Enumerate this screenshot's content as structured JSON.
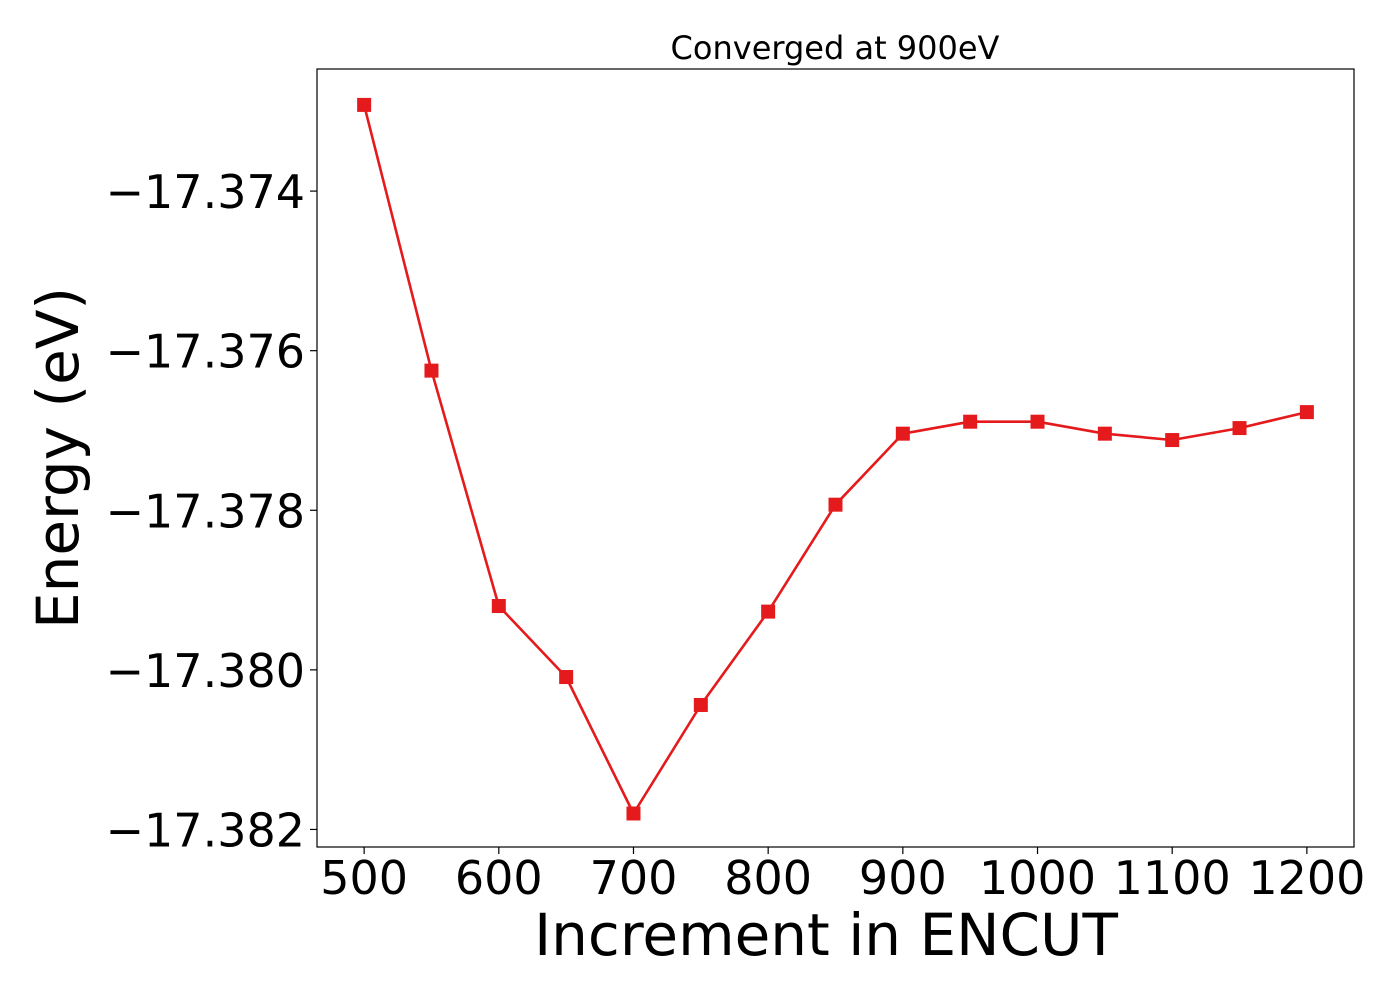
{
  "chart_data": {
    "type": "line",
    "title": "Converged at 900eV",
    "xlabel": "Increment in ENCUT",
    "ylabel": "Energy (eV)",
    "xlim": [
      465,
      1235
    ],
    "ylim": [
      -17.38222,
      -17.37247
    ],
    "xticks": [
      500,
      600,
      700,
      800,
      900,
      1000,
      1100,
      1200
    ],
    "xtick_labels": [
      "500",
      "600",
      "700",
      "800",
      "900",
      "1000",
      "1100",
      "1200"
    ],
    "yticks": [
      -17.374,
      -17.376,
      -17.378,
      -17.38,
      -17.382
    ],
    "ytick_labels": [
      "−17.374",
      "−17.376",
      "−17.378",
      "−17.380",
      "−17.382"
    ],
    "grid": false,
    "series": [
      {
        "color": "#e41a1c",
        "marker": "square",
        "x": [
          500,
          550,
          600,
          650,
          700,
          750,
          800,
          850,
          900,
          950,
          1000,
          1050,
          1100,
          1150,
          1200
        ],
        "y": [
          -17.37292,
          -17.37625,
          -17.3792,
          -17.38009,
          -17.3818,
          -17.38044,
          -17.37927,
          -17.37793,
          -17.37704,
          -17.37689,
          -17.37689,
          -17.37704,
          -17.37712,
          -17.37697,
          -17.37677
        ]
      }
    ]
  }
}
